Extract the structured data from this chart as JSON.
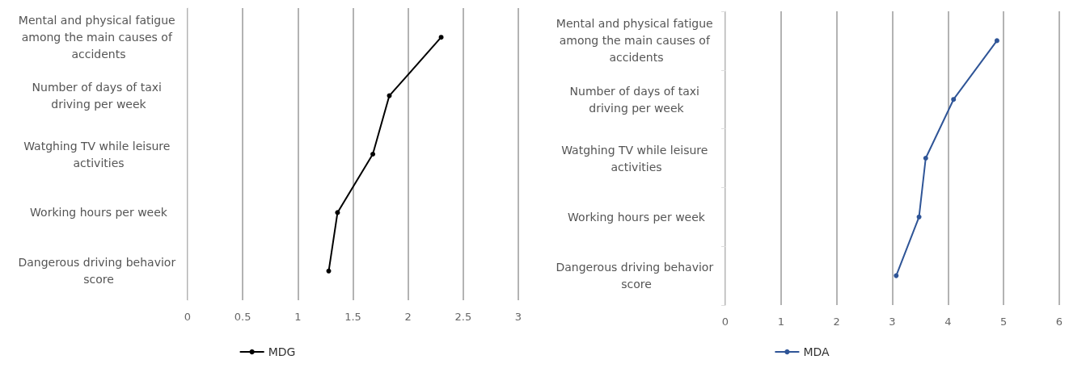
{
  "chart_data": [
    {
      "type": "line",
      "orientation": "horizontal",
      "categories": [
        "Mental and physical fatigue among the main causes of accidents",
        "Number of days of taxi driving per week",
        "Watghing TV while leisure activities",
        "Working hours per week",
        "Dangerous driving behavior score"
      ],
      "series": [
        {
          "name": "MDG",
          "color": "#000000",
          "values": [
            2.3,
            1.83,
            1.68,
            1.36,
            1.28
          ]
        }
      ],
      "xlim": [
        0,
        3
      ],
      "xticks": [
        0,
        0.5,
        1,
        1.5,
        2,
        2.5,
        3
      ],
      "grid": "x",
      "legend": "bottom",
      "marker": "circle",
      "line_style": "solid"
    },
    {
      "type": "line",
      "orientation": "horizontal",
      "categories": [
        "Mental and physical fatigue among the main causes of accidents",
        "Number of days of taxi driving per week",
        "Watghing TV while leisure activities",
        "Working hours per week",
        "Dangerous driving behavior score"
      ],
      "series": [
        {
          "name": "MDA",
          "color": "#2f5597",
          "values": [
            4.88,
            4.1,
            3.6,
            3.48,
            3.07
          ]
        }
      ],
      "xlim": [
        0,
        6
      ],
      "xticks": [
        0,
        1,
        2,
        3,
        4,
        5,
        6
      ],
      "grid": "x",
      "legend": "bottom",
      "marker": "circle",
      "line_style": "solid"
    }
  ]
}
